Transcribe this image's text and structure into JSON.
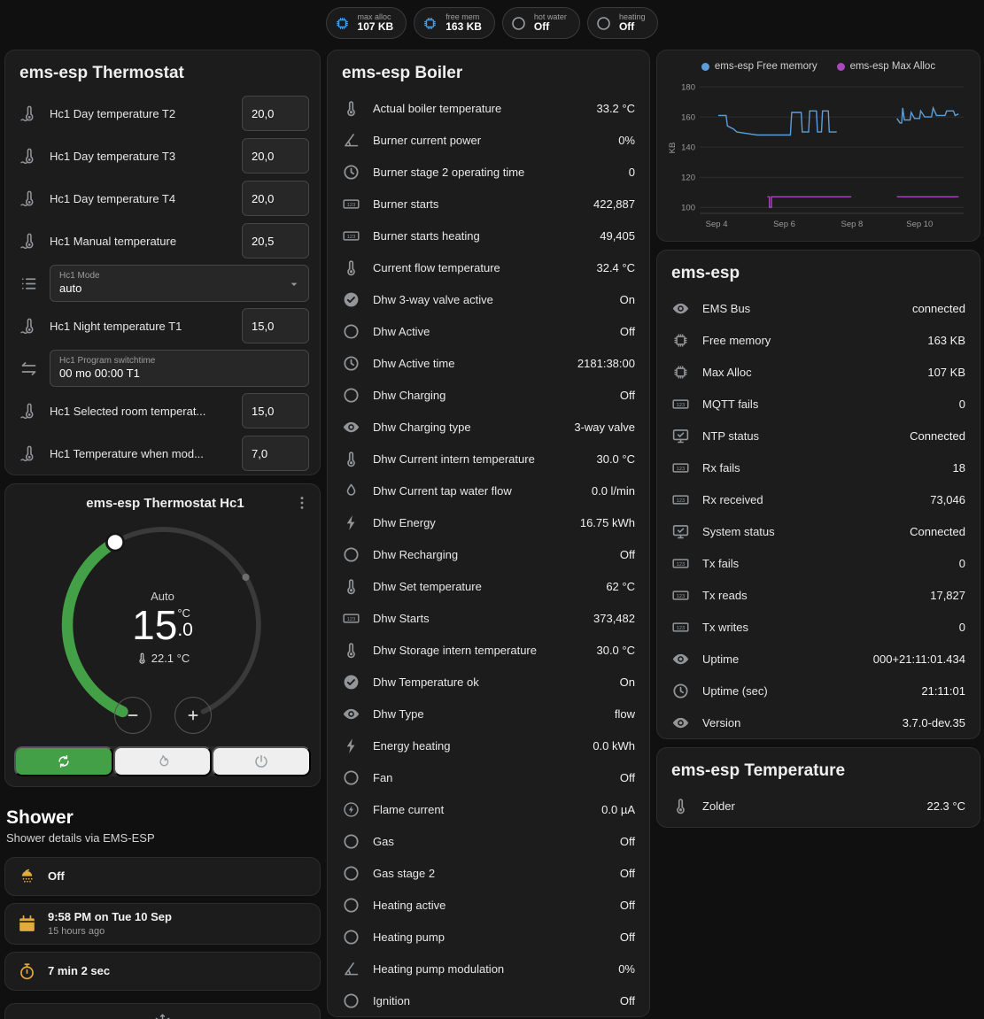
{
  "theme": {
    "accent_green": "#43a047",
    "amber": "#e2aa3f",
    "badge_icon_blue": "#4a9de0",
    "icon_gray": "#939699"
  },
  "badges": [
    {
      "label": "max alloc",
      "value": "107 KB",
      "icon": "chip",
      "icon_color": "#4a9de0"
    },
    {
      "label": "free mem",
      "value": "163 KB",
      "icon": "chip",
      "icon_color": "#4a9de0"
    },
    {
      "label": "hot water",
      "value": "Off",
      "icon": "circle",
      "icon_color": "#9aa0a6"
    },
    {
      "label": "heating",
      "value": "Off",
      "icon": "circle",
      "icon_color": "#9aa0a6"
    }
  ],
  "left": {
    "thermostat": {
      "title": "ems-esp Thermostat",
      "rows": [
        {
          "type": "number",
          "icon": "thermometer-water",
          "label": "Hc1 Day temperature T2",
          "value": "20,0"
        },
        {
          "type": "number",
          "icon": "thermometer-water",
          "label": "Hc1 Day temperature T3",
          "value": "20,0"
        },
        {
          "type": "number",
          "icon": "thermometer-water",
          "label": "Hc1 Day temperature T4",
          "value": "20,0"
        },
        {
          "type": "number",
          "icon": "thermometer-water",
          "label": "Hc1 Manual temperature",
          "value": "20,5"
        },
        {
          "type": "select",
          "icon": "list",
          "label": "Hc1 Mode",
          "value": "auto"
        },
        {
          "type": "number",
          "icon": "thermometer-water",
          "label": "Hc1 Night temperature T1",
          "value": "15,0"
        },
        {
          "type": "text",
          "icon": "swap",
          "label": "Hc1 Program switchtime",
          "value": "00 mo 00:00 T1"
        },
        {
          "type": "number",
          "icon": "thermometer-water",
          "label": "Hc1 Selected room temperat...",
          "value": "15,0"
        },
        {
          "type": "number",
          "icon": "thermometer-water",
          "label": "Hc1 Temperature when mod...",
          "value": "7,0"
        }
      ]
    },
    "dial": {
      "title": "ems-esp Thermostat Hc1",
      "mode": "Auto",
      "target_whole": "15",
      "target_frac": ".0",
      "unit": "°C",
      "current": "22.1 °C",
      "modes": [
        {
          "icon": "auto",
          "active": true
        },
        {
          "icon": "flame",
          "active": false
        },
        {
          "icon": "power",
          "active": false
        }
      ]
    },
    "shower": {
      "title": "Shower",
      "subtitle": "Shower details via EMS-ESP",
      "tiles": [
        {
          "icon": "shower",
          "icon_color": "#e2aa3f",
          "text": "Off"
        },
        {
          "icon": "calendar",
          "icon_color": "#e2aa3f",
          "text": "9:58 PM on Tue 10 Sep",
          "sub": "15 hours ago"
        },
        {
          "icon": "timer",
          "icon_color": "#e2aa3f",
          "text": "7 min 2 sec"
        },
        {
          "icon": "snowflake",
          "icon_color": "#8fa0ad",
          "text": "",
          "centered": true
        }
      ]
    }
  },
  "boiler": {
    "title": "ems-esp Boiler",
    "rows": [
      {
        "icon": "thermometer",
        "label": "Actual boiler temperature",
        "value": "33.2 °C"
      },
      {
        "icon": "angle",
        "label": "Burner current power",
        "value": "0%"
      },
      {
        "icon": "clock",
        "label": "Burner stage 2 operating time",
        "value": "0"
      },
      {
        "icon": "counter",
        "label": "Burner starts",
        "value": "422,887"
      },
      {
        "icon": "counter",
        "label": "Burner starts heating",
        "value": "49,405"
      },
      {
        "icon": "thermometer",
        "label": "Current flow temperature",
        "value": "32.4 °C"
      },
      {
        "icon": "check-circle",
        "label": "Dhw 3-way valve active",
        "value": "On"
      },
      {
        "icon": "circle",
        "label": "Dhw Active",
        "value": "Off"
      },
      {
        "icon": "clock",
        "label": "Dhw Active time",
        "value": "2181:38:00"
      },
      {
        "icon": "circle",
        "label": "Dhw Charging",
        "value": "Off"
      },
      {
        "icon": "eye",
        "label": "Dhw Charging type",
        "value": "3-way valve"
      },
      {
        "icon": "thermometer",
        "label": "Dhw Current intern temperature",
        "value": "30.0 °C"
      },
      {
        "icon": "water-pump",
        "label": "Dhw Current tap water flow",
        "value": "0.0 l/min"
      },
      {
        "icon": "flash",
        "label": "Dhw Energy",
        "value": "16.75 kWh"
      },
      {
        "icon": "circle",
        "label": "Dhw Recharging",
        "value": "Off"
      },
      {
        "icon": "thermometer",
        "label": "Dhw Set temperature",
        "value": "62 °C"
      },
      {
        "icon": "counter",
        "label": "Dhw Starts",
        "value": "373,482"
      },
      {
        "icon": "thermometer",
        "label": "Dhw Storage intern temperature",
        "value": "30.0 °C"
      },
      {
        "icon": "check-circle",
        "label": "Dhw Temperature ok",
        "value": "On"
      },
      {
        "icon": "eye",
        "label": "Dhw Type",
        "value": "flow"
      },
      {
        "icon": "flash",
        "label": "Energy heating",
        "value": "0.0 kWh"
      },
      {
        "icon": "circle",
        "label": "Fan",
        "value": "Off"
      },
      {
        "icon": "flash-circle",
        "label": "Flame current",
        "value": "0.0 µA"
      },
      {
        "icon": "circle",
        "label": "Gas",
        "value": "Off"
      },
      {
        "icon": "circle",
        "label": "Gas stage 2",
        "value": "Off"
      },
      {
        "icon": "circle",
        "label": "Heating active",
        "value": "Off"
      },
      {
        "icon": "circle",
        "label": "Heating pump",
        "value": "Off"
      },
      {
        "icon": "angle",
        "label": "Heating pump modulation",
        "value": "0%"
      },
      {
        "icon": "circle",
        "label": "Ignition",
        "value": "Off"
      }
    ]
  },
  "right": {
    "system": {
      "title": "ems-esp",
      "rows": [
        {
          "icon": "eye",
          "label": "EMS Bus",
          "value": "connected"
        },
        {
          "icon": "chip",
          "label": "Free memory",
          "value": "163 KB"
        },
        {
          "icon": "chip",
          "label": "Max Alloc",
          "value": "107 KB"
        },
        {
          "icon": "counter",
          "label": "MQTT fails",
          "value": "0"
        },
        {
          "icon": "monitor",
          "label": "NTP status",
          "value": "Connected"
        },
        {
          "icon": "counter",
          "label": "Rx fails",
          "value": "18"
        },
        {
          "icon": "counter",
          "label": "Rx received",
          "value": "73,046"
        },
        {
          "icon": "monitor",
          "label": "System status",
          "value": "Connected"
        },
        {
          "icon": "counter",
          "label": "Tx fails",
          "value": "0"
        },
        {
          "icon": "counter",
          "label": "Tx reads",
          "value": "17,827"
        },
        {
          "icon": "counter",
          "label": "Tx writes",
          "value": "0"
        },
        {
          "icon": "eye",
          "label": "Uptime",
          "value": "000+21:11:01.434"
        },
        {
          "icon": "clock",
          "label": "Uptime (sec)",
          "value": "21:11:01"
        },
        {
          "icon": "eye",
          "label": "Version",
          "value": "3.7.0-dev.35"
        }
      ]
    },
    "temperature": {
      "title": "ems-esp Temperature",
      "rows": [
        {
          "icon": "thermometer",
          "label": "Zolder",
          "value": "22.3 °C"
        }
      ]
    }
  },
  "chart_data": {
    "type": "line",
    "title": "",
    "ylabel": "KB",
    "ylim": [
      96,
      183
    ],
    "yticks": [
      100,
      120,
      140,
      160,
      180
    ],
    "xlim": [
      3.5,
      11.3
    ],
    "xticks": [
      {
        "v": 4,
        "label": "Sep 4"
      },
      {
        "v": 6,
        "label": "Sep 6"
      },
      {
        "v": 8,
        "label": "Sep 8"
      },
      {
        "v": 10,
        "label": "Sep 10"
      }
    ],
    "legend_position": "top",
    "grid": true,
    "series": [
      {
        "name": "ems-esp Free memory",
        "color": "#5c9ed9",
        "points": [
          [
            4.05,
            161
          ],
          [
            4.28,
            161
          ],
          [
            4.32,
            154
          ],
          [
            4.5,
            152
          ],
          [
            4.6,
            150
          ],
          [
            4.9,
            149
          ],
          [
            5.2,
            148
          ],
          [
            6.18,
            148
          ],
          [
            6.22,
            163
          ],
          [
            6.5,
            163
          ],
          [
            6.53,
            150
          ],
          [
            6.72,
            150
          ],
          [
            6.75,
            164
          ],
          [
            6.95,
            164
          ],
          [
            6.98,
            150
          ],
          [
            7.1,
            150
          ],
          [
            7.13,
            164
          ],
          [
            7.3,
            164
          ],
          [
            7.33,
            150
          ],
          [
            7.55,
            150
          ],
          null,
          [
            9.33,
            159
          ],
          [
            9.42,
            156
          ],
          [
            9.47,
            156
          ],
          [
            9.5,
            166
          ],
          [
            9.55,
            158
          ],
          [
            9.72,
            158
          ],
          [
            9.75,
            163
          ],
          [
            9.85,
            159
          ],
          [
            10.0,
            159
          ],
          [
            10.03,
            164
          ],
          [
            10.15,
            160
          ],
          [
            10.35,
            160
          ],
          [
            10.4,
            166
          ],
          [
            10.5,
            161
          ],
          [
            10.75,
            161
          ],
          [
            10.8,
            164
          ],
          [
            11.0,
            164
          ],
          [
            11.05,
            161
          ],
          [
            11.15,
            162
          ]
        ]
      },
      {
        "name": "ems-esp Max Alloc",
        "color": "#ab47bc",
        "points": [
          [
            5.5,
            107
          ],
          [
            5.56,
            107
          ],
          [
            5.56,
            100
          ],
          [
            5.62,
            100
          ],
          [
            5.62,
            107
          ],
          [
            7.98,
            107
          ],
          null,
          [
            9.33,
            107
          ],
          [
            11.15,
            107
          ]
        ]
      }
    ]
  }
}
